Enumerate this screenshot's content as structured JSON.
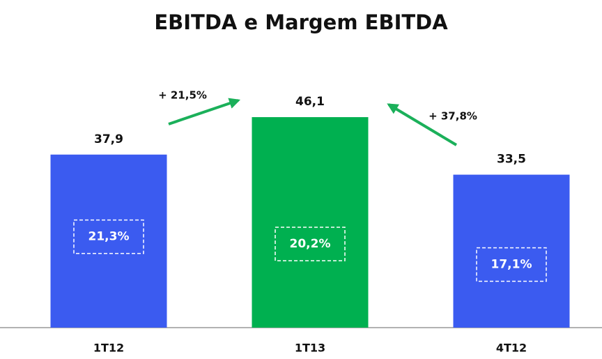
{
  "chart_data": {
    "type": "bar",
    "title": "EBITDA e Margem EBITDA",
    "categories": [
      "1T12",
      "1T13",
      "4T12"
    ],
    "values": [
      37.9,
      46.1,
      33.5
    ],
    "value_labels": [
      "37,9",
      "46,1",
      "33,5"
    ],
    "colors": [
      "#3b5bf0",
      "#00b050",
      "#3b5bf0"
    ],
    "ylim": [
      0,
      50
    ],
    "margin": {
      "values": [
        21.3,
        20.2,
        17.1
      ],
      "value_labels": [
        "21,3%",
        "20,2%",
        "17,1%"
      ],
      "axis": "y2"
    },
    "y2lim": [
      7.6,
      42
    ],
    "annotations": [
      "+ 21,5%",
      "+ 37,8%"
    ]
  }
}
